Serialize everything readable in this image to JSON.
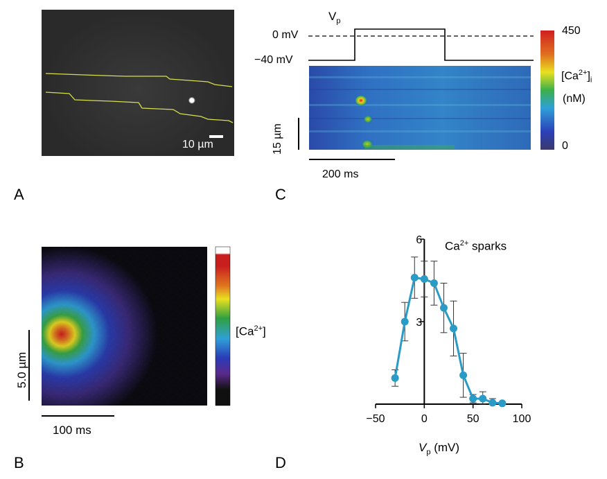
{
  "panel_a": {
    "letter": "A",
    "scale_label": "10 µm"
  },
  "panel_b": {
    "letter": "B",
    "colorbar_label_base": "[Ca",
    "colorbar_label_sup": "2+",
    "colorbar_label_end": "]",
    "vertical_scale": "5.0 µm",
    "horizontal_scale": "100 ms"
  },
  "panel_c": {
    "letter": "C",
    "voltage_label_base": "V",
    "voltage_label_sub": "p",
    "level_0": "0 mV",
    "level_neg40": "−40 mV",
    "colorbar_max": "450",
    "colorbar_min": "0",
    "colorbar_label_base": "[Ca",
    "colorbar_label_sup": "2+",
    "colorbar_label_close": "]",
    "colorbar_label_sub": "i",
    "colorbar_units": "(nM)",
    "vertical_scale": "15 µm",
    "horizontal_scale": "200 ms"
  },
  "panel_d": {
    "letter": "D",
    "title_base": "Ca",
    "title_sup": "2+",
    "title_end": " sparks",
    "xlabel_italic": "V",
    "xlabel_sub": "p",
    "xlabel_units": " (mV)"
  },
  "colors": {
    "yellow_outline": "#d8e04a",
    "series": "#2a9ac6"
  },
  "chart_data": {
    "type": "line",
    "title": "Ca2+ sparks",
    "xlabel": "Vp (mV)",
    "ylabel": "",
    "xlim": [
      -50,
      100
    ],
    "ylim": [
      0,
      6
    ],
    "xticks": [
      "−50",
      "0",
      "50",
      "100"
    ],
    "yticks": [
      "3",
      "6"
    ],
    "x": [
      -30,
      -20,
      -10,
      0,
      10,
      20,
      30,
      40,
      50,
      60,
      70,
      80
    ],
    "series": [
      {
        "values": [
          0.95,
          3.0,
          4.6,
          4.55,
          4.4,
          3.5,
          2.75,
          1.05,
          0.2,
          0.2,
          0.05,
          0.03
        ],
        "errors": [
          0.3,
          0.7,
          0.75,
          0.65,
          0.8,
          0.9,
          1.0,
          0.8,
          0.15,
          0.25,
          0.15,
          0.05
        ]
      }
    ]
  }
}
